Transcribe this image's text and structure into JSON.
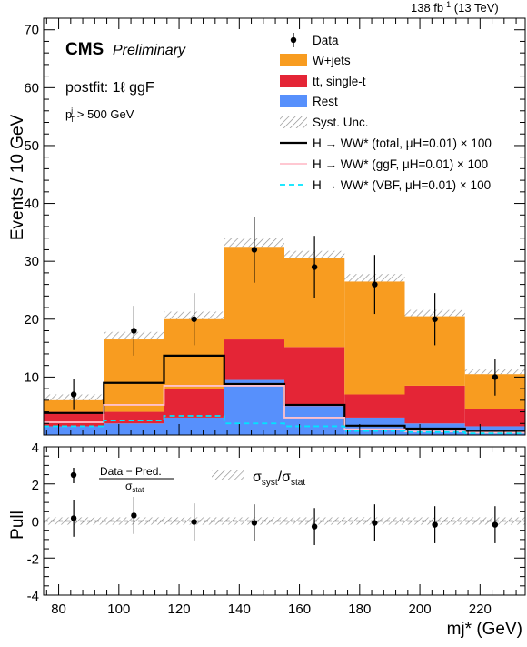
{
  "header": {
    "lumi": "138 fb",
    "lumi_exp": "-1",
    "energy": "(13 TeV)"
  },
  "labels": {
    "cms": "CMS",
    "preliminary": "Preliminary",
    "region": "postfit: 1ℓ ggF",
    "cut_p": "p",
    "cut_sub": "T",
    "cut_sup": "j",
    "cut_rest": "> 500 GeV",
    "pull_formula_num": "Data − Pred.",
    "pull_formula_den": "σ",
    "pull_formula_den_sub": "stat",
    "pull_syst_label": "σ",
    "pull_syst_sub1": "syst",
    "pull_syst_mid": "/σ",
    "pull_syst_sub2": "stat"
  },
  "legend": [
    {
      "key": "data",
      "text": "Data"
    },
    {
      "key": "wjets",
      "text": "W+jets"
    },
    {
      "key": "ttbar",
      "text": "tt̄, single-t"
    },
    {
      "key": "rest",
      "text": "Rest"
    },
    {
      "key": "syst",
      "text": "Syst. Unc."
    },
    {
      "key": "sig_total",
      "text": "H → WW* (total, μH=0.01) × 100"
    },
    {
      "key": "sig_ggf",
      "text": "H → WW* (ggF, μH=0.01) × 100"
    },
    {
      "key": "sig_vbf",
      "text": "H → WW* (VBF, μH=0.01) × 100"
    }
  ],
  "colors": {
    "wjets": "#f89c20",
    "ttbar": "#e42536",
    "rest": "#5790fc",
    "sig_total": "#000000",
    "sig_ggf": "#ffc0cb",
    "sig_vbf": "#00e5ff"
  },
  "chart_data": [
    {
      "type": "bar",
      "stacked": true,
      "xlabel": "mj* (GeV)",
      "ylabel": "Events / 10 GeV",
      "xlim": [
        75,
        235
      ],
      "ylim": [
        0,
        72
      ],
      "bin_edges": [
        75,
        95,
        115,
        135,
        155,
        175,
        195,
        215,
        235
      ],
      "x_ticks": [
        80,
        100,
        120,
        140,
        160,
        180,
        200,
        220
      ],
      "y_ticks": [
        10,
        20,
        30,
        40,
        50,
        60,
        70
      ],
      "series": [
        {
          "name": "Rest",
          "values": [
            1.5,
            2.0,
            3.0,
            9.5,
            5.0,
            3.0,
            2.0,
            1.5
          ]
        },
        {
          "name": "tt̄, single-t",
          "values": [
            2.5,
            2.0,
            5.0,
            7.0,
            10.2,
            4.0,
            6.5,
            3.0
          ]
        },
        {
          "name": "W+jets",
          "values": [
            2.0,
            12.5,
            12.0,
            16.0,
            15.3,
            19.5,
            12.0,
            6.0
          ]
        }
      ],
      "syst_band": {
        "lower": [
          6.0,
          16.5,
          20.0,
          32.5,
          30.5,
          26.5,
          20.5,
          10.5
        ],
        "upper": [
          7.0,
          17.8,
          21.3,
          34.0,
          31.8,
          27.8,
          21.6,
          11.3
        ]
      },
      "data": {
        "x": [
          85,
          105,
          125,
          145,
          165,
          185,
          205,
          225
        ],
        "y": [
          7,
          18,
          20,
          32,
          29,
          26,
          20,
          10
        ],
        "err": [
          2.7,
          4.3,
          4.5,
          5.7,
          5.4,
          5.1,
          4.5,
          3.2
        ]
      },
      "signals": [
        {
          "name": "H → WW* (total, μH=0.01) × 100",
          "values": [
            3.8,
            9.0,
            13.7,
            8.8,
            5.2,
            1.6,
            1.1,
            0.6
          ]
        },
        {
          "name": "H → WW* (ggF, μH=0.01) × 100",
          "values": [
            2.2,
            5.2,
            8.5,
            8.5,
            3.0,
            1.0,
            0.6,
            0.4
          ]
        },
        {
          "name": "H → WW* (VBF, μH=0.01) × 100",
          "values": [
            1.5,
            2.5,
            3.3,
            2.0,
            1.5,
            0.7,
            0.5,
            0.3
          ]
        }
      ]
    },
    {
      "type": "scatter",
      "xlabel": "mj* (GeV)",
      "ylabel": "Pull",
      "xlim": [
        75,
        235
      ],
      "ylim": [
        -4,
        4
      ],
      "x_ticks": [
        80,
        100,
        120,
        140,
        160,
        180,
        200,
        220
      ],
      "y_ticks": [
        -4,
        -2,
        0,
        2,
        4
      ],
      "x": [
        85,
        105,
        125,
        145,
        165,
        185,
        205,
        225
      ],
      "y": [
        0.15,
        0.3,
        -0.05,
        -0.1,
        -0.3,
        -0.1,
        -0.2,
        -0.2
      ],
      "err": [
        1.0,
        1.0,
        1.0,
        1.0,
        1.0,
        1.0,
        1.0,
        1.0
      ],
      "syst_band": [
        -0.2,
        0.2
      ]
    }
  ]
}
